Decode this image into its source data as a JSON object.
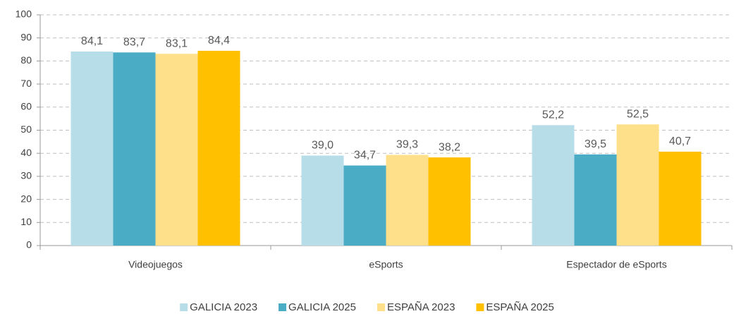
{
  "chart_data": {
    "type": "bar",
    "categories": [
      "Videojuegos",
      "eSports",
      "Espectador de eSports"
    ],
    "series": [
      {
        "name": "GALICIA 2023",
        "color": "#b7dde8",
        "values": [
          84.1,
          39.0,
          52.2
        ],
        "value_labels": [
          "84,1",
          "39,0",
          "52,2"
        ]
      },
      {
        "name": "GALICIA 2025",
        "color": "#4bacc6",
        "values": [
          83.7,
          34.7,
          39.5
        ],
        "value_labels": [
          "83,7",
          "34,7",
          "39,5"
        ]
      },
      {
        "name": "ESPAÑA 2023",
        "color": "#ffe08a",
        "values": [
          83.1,
          39.3,
          52.5
        ],
        "value_labels": [
          "83,1",
          "39,3",
          "52,5"
        ]
      },
      {
        "name": "ESPAÑA 2025",
        "color": "#ffc000",
        "values": [
          84.4,
          38.2,
          40.7
        ],
        "value_labels": [
          "84,4",
          "38,2",
          "40,7"
        ]
      }
    ],
    "ylim": [
      0,
      100
    ],
    "yticks": [
      0,
      10,
      20,
      30,
      40,
      50,
      60,
      70,
      80,
      90,
      100
    ],
    "grid": true,
    "legend": "bottom"
  }
}
